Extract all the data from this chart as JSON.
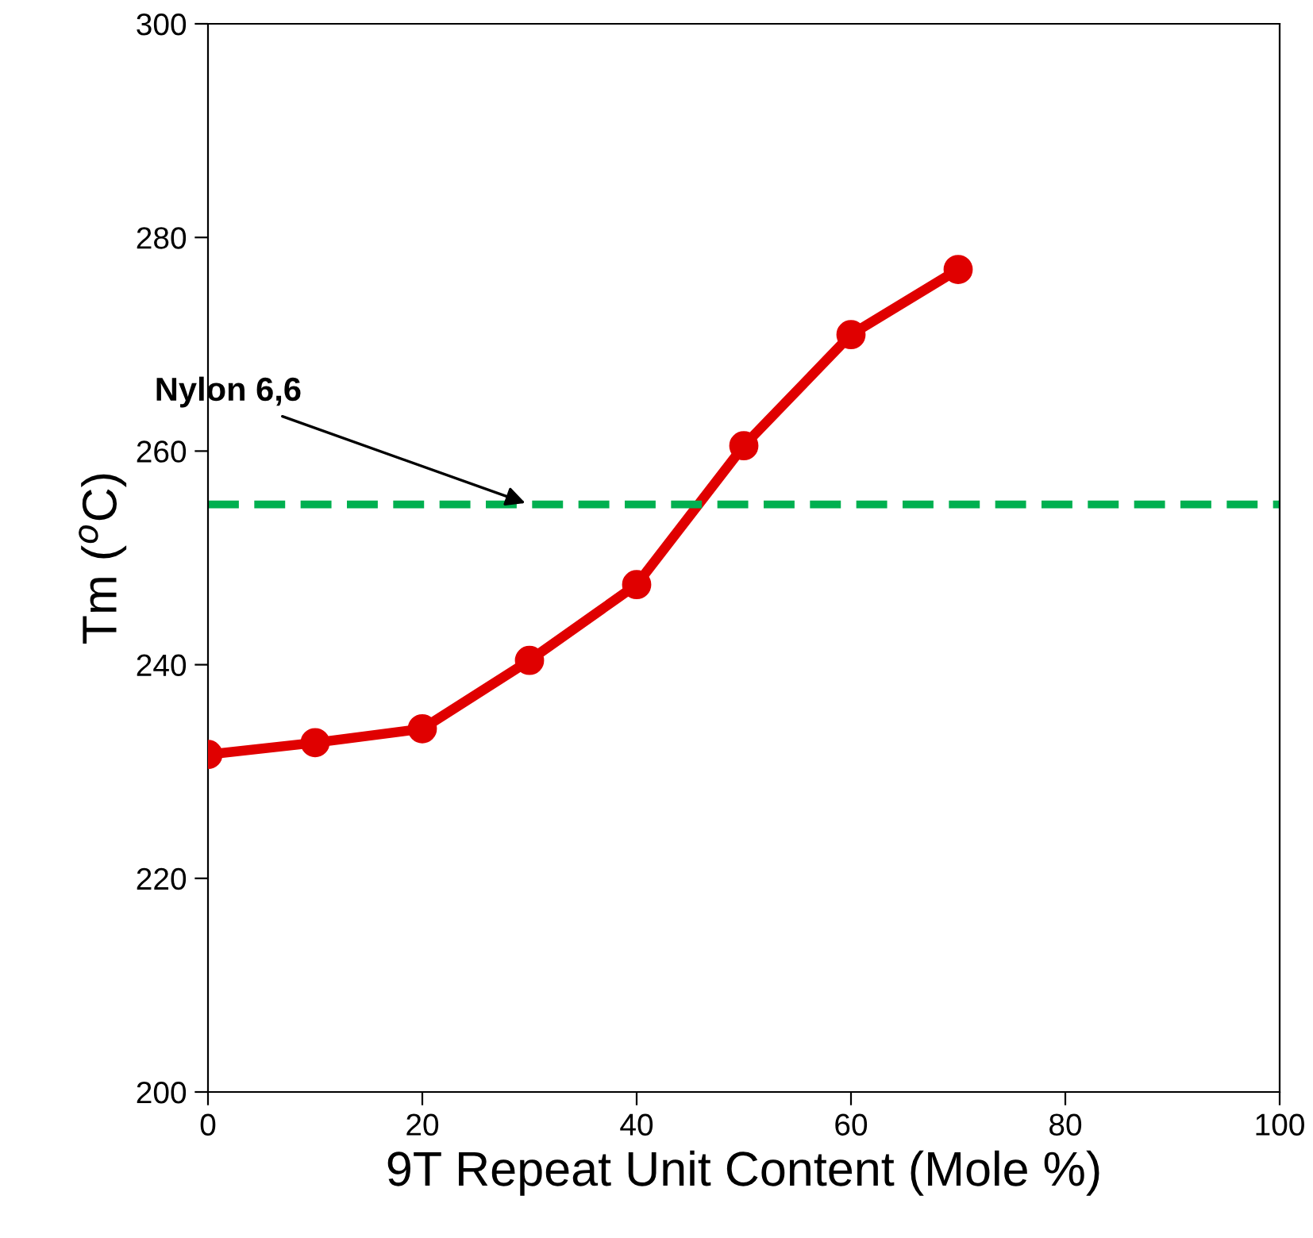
{
  "chart_data": {
    "type": "line",
    "xlabel": "9T Repeat Unit Content (Mole %)",
    "ylabel": "Tm ($^{o}$C)",
    "x": [
      0,
      10,
      20,
      30,
      40,
      50,
      60,
      70
    ],
    "series": [
      {
        "color": "#e00000",
        "values": [
          231.6,
          232.7,
          234.0,
          240.4,
          247.5,
          260.5,
          270.9,
          277.0
        ]
      }
    ],
    "marker": "circle",
    "line_style": "solid",
    "grid": false,
    "legend": false,
    "xlim": [
      0,
      100
    ],
    "xticks": [
      0,
      20,
      40,
      60,
      80,
      100
    ],
    "ylim": [
      200,
      300
    ],
    "yticks": [
      200,
      220,
      240,
      260,
      280,
      300
    ],
    "ref_lines": [
      {
        "axis": "y",
        "value": 255,
        "color": "#00b050",
        "line_style": "dashed"
      }
    ],
    "annotations": [
      {
        "text": "Nylon 6,6",
        "x": 30,
        "y": 255
      }
    ]
  }
}
